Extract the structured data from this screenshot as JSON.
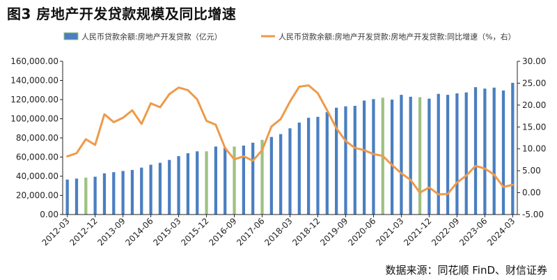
{
  "figure": {
    "title": "图3  房地产开发贷款规模及同比增速",
    "source": "数据来源：同花顺 FinD、财信证券"
  },
  "chart_data": {
    "type": "bar+line",
    "title": "图3  房地产开发贷款规模及同比增速",
    "legend_position": "top",
    "grid": false,
    "colors": {
      "bar": "#4a7fc1",
      "bar_alt": "#9dc183",
      "line": "#ee9a4a",
      "axis": "#222222"
    },
    "xlim": [
      0,
      49
    ],
    "ylim_left": [
      0,
      160000
    ],
    "ylim_right": [
      -5,
      30
    ],
    "left_ticks": [
      "0.00",
      "20,000.00",
      "40,000.00",
      "60,000.00",
      "80,000.00",
      "100,000.00",
      "120,000.00",
      "140,000.00",
      "160,000.00"
    ],
    "right_ticks": [
      "-5.00",
      "0.00",
      "5.00",
      "10.00",
      "15.00",
      "20.00",
      "25.00",
      "30.00"
    ],
    "x_tick_labels": [
      "2012-03",
      "2012-12",
      "2013-09",
      "2014-06",
      "2015-03",
      "2015-12",
      "2016-09",
      "2017-06",
      "2018-03",
      "2018-12",
      "2019-09",
      "2020-06",
      "2021-03",
      "2021-12",
      "2022-09",
      "2023-06",
      "2024-03"
    ],
    "categories": [
      "2012-03",
      "2012-06",
      "2012-09",
      "2012-12",
      "2013-03",
      "2013-06",
      "2013-09",
      "2013-12",
      "2014-03",
      "2014-06",
      "2014-09",
      "2014-12",
      "2015-03",
      "2015-06",
      "2015-09",
      "2015-12",
      "2016-03",
      "2016-06",
      "2016-09",
      "2016-12",
      "2017-03",
      "2017-06",
      "2017-09",
      "2017-12",
      "2018-03",
      "2018-06",
      "2018-09",
      "2018-12",
      "2019-03",
      "2019-06",
      "2019-09",
      "2019-12",
      "2020-03",
      "2020-06",
      "2020-09",
      "2020-12",
      "2021-03",
      "2021-06",
      "2021-09",
      "2021-12",
      "2022-03",
      "2022-06",
      "2022-09",
      "2022-12",
      "2023-03",
      "2023-06",
      "2023-09",
      "2023-12",
      "2024-03"
    ],
    "series": [
      {
        "name": "人民币贷款余额:房地产开发贷款（亿元）",
        "type": "bar",
        "axis": "left",
        "values": [
          36500,
          37500,
          38500,
          39500,
          43000,
          44200,
          45500,
          46500,
          49000,
          52000,
          54000,
          57000,
          61000,
          64000,
          66000,
          66000,
          71000,
          70000,
          71000,
          72000,
          75000,
          78000,
          81000,
          84000,
          90000,
          96000,
          101000,
          102000,
          107000,
          111500,
          113000,
          113500,
          119000,
          120500,
          122000,
          120000,
          125000,
          123000,
          122500,
          121000,
          126000,
          125000,
          126500,
          127500,
          133000,
          131500,
          132500,
          129500,
          137500
        ]
      },
      {
        "name": "人民币贷款余额:房地产开发贷款:房地产开发贷款:同比增速（%，右）",
        "type": "line",
        "axis": "right",
        "values": [
          8.3,
          9.0,
          12.2,
          10.9,
          17.9,
          16.1,
          17.1,
          18.8,
          15.7,
          20.4,
          19.5,
          22.5,
          24.0,
          23.4,
          21.3,
          16.4,
          15.5,
          10.2,
          7.6,
          8.3,
          7.3,
          9.7,
          15.1,
          16.8,
          20.8,
          24.2,
          24.5,
          22.7,
          18.8,
          14.7,
          11.8,
          10.2,
          9.7,
          8.8,
          8.4,
          6.3,
          4.4,
          2.9,
          0.0,
          1.2,
          -0.4,
          -0.3,
          2.3,
          3.9,
          6.1,
          5.5,
          4.1,
          1.3,
          1.8
        ]
      }
    ]
  }
}
